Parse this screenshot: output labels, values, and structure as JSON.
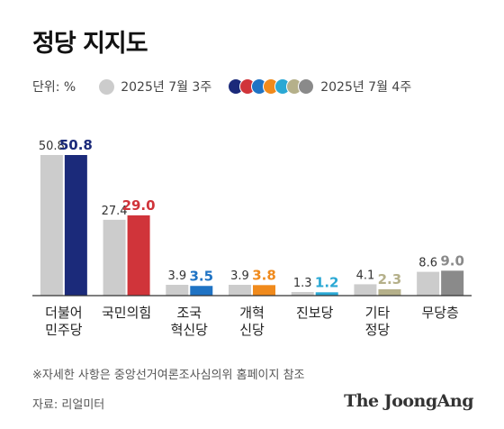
{
  "title": "정당 지지도",
  "unit_label": "단위: %",
  "legend": {
    "prev_label": "2025년 7월 3주",
    "cur_label": "2025년 7월 4주",
    "prev_color": "#cccccc",
    "cur_colors": [
      "#1b2a7a",
      "#d0343a",
      "#1f73c4",
      "#f08a1c",
      "#2aa8d4",
      "#b5b08a",
      "#8a8a8a"
    ]
  },
  "note": "※자세한 사항은 중앙선거여론조사심의위 홈페이지 참조",
  "source": "자료: 리얼미터",
  "logo": "The JoongAng",
  "chart_data": {
    "type": "bar",
    "categories": [
      [
        "더불어",
        "민주당"
      ],
      [
        "국민의힘"
      ],
      [
        "조국",
        "혁신당"
      ],
      [
        "개혁",
        "신당"
      ],
      [
        "진보당"
      ],
      [
        "기타",
        "정당"
      ],
      [
        "무당층"
      ]
    ],
    "series": [
      {
        "name": "2025년 7월 3주",
        "values": [
          50.8,
          27.4,
          3.9,
          3.9,
          1.3,
          4.1,
          8.6
        ],
        "labels": [
          "50.8",
          "27.4",
          "3.9",
          "3.9",
          "1.3",
          "4.1",
          "8.6"
        ],
        "color": "#cccccc"
      },
      {
        "name": "2025년 7월 4주",
        "values": [
          50.8,
          29.0,
          3.5,
          3.8,
          1.2,
          2.3,
          9.0
        ],
        "labels": [
          "50.8",
          "29.0",
          "3.5",
          "3.8",
          "1.2",
          "2.3",
          "9.0"
        ],
        "colors": [
          "#1b2a7a",
          "#d0343a",
          "#1f73c4",
          "#f08a1c",
          "#2aa8d4",
          "#b5b08a",
          "#8a8a8a"
        ]
      }
    ],
    "ylim": [
      0,
      50.8
    ],
    "grid": false,
    "legend_position": "top-left"
  }
}
